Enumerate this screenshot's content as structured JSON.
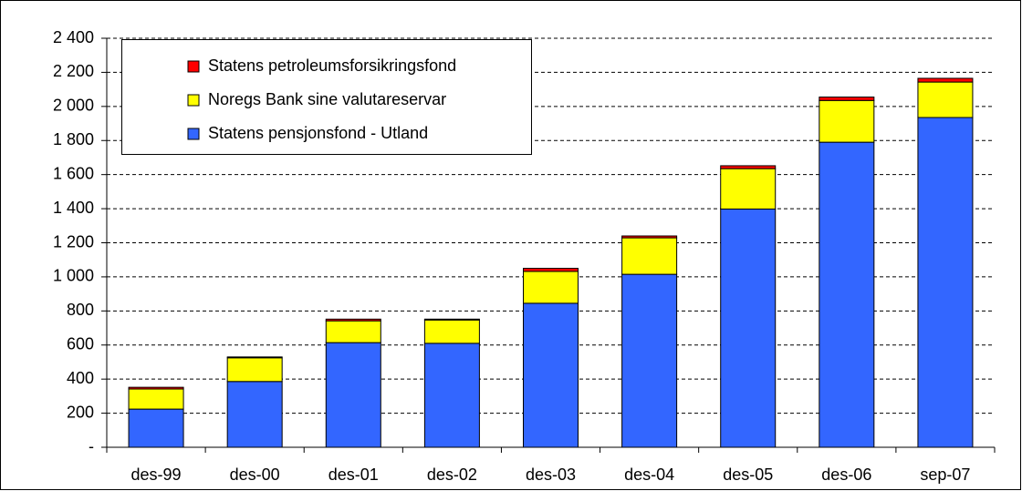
{
  "chart_data": {
    "type": "stacked_bar",
    "categories": [
      "des-99",
      "des-00",
      "des-01",
      "des-02",
      "des-03",
      "des-04",
      "des-05",
      "des-06",
      "sep-07"
    ],
    "series": [
      {
        "name": "Statens pensjonsfond - Utland",
        "color": "#3366ff",
        "values": [
          224,
          386,
          614,
          610,
          845,
          1015,
          1398,
          1790,
          1935
        ]
      },
      {
        "name": "Noregs Bank sine valutareservar",
        "color": "#ffff00",
        "values": [
          118,
          139,
          128,
          137,
          187,
          214,
          237,
          245,
          208
        ]
      },
      {
        "name": "Statens petroleumsforsikringsfond",
        "color": "#ff0000",
        "values": [
          10,
          5,
          10,
          5,
          18,
          11,
          17,
          20,
          22
        ]
      }
    ],
    "ylim": [
      0,
      2400
    ],
    "yticks": [
      {
        "value": 0,
        "label": "-"
      },
      200,
      400,
      600,
      800,
      {
        "value": 1000,
        "label": "1 000"
      },
      {
        "value": 1200,
        "label": "1 200"
      },
      {
        "value": 1400,
        "label": "1 400"
      },
      {
        "value": 1600,
        "label": "1 600"
      },
      {
        "value": 1800,
        "label": "1 800"
      },
      {
        "value": 2000,
        "label": "2 000"
      },
      {
        "value": 2200,
        "label": "2 200"
      },
      {
        "value": 2400,
        "label": "2 400"
      }
    ],
    "grid": true,
    "legend": "upper left"
  }
}
